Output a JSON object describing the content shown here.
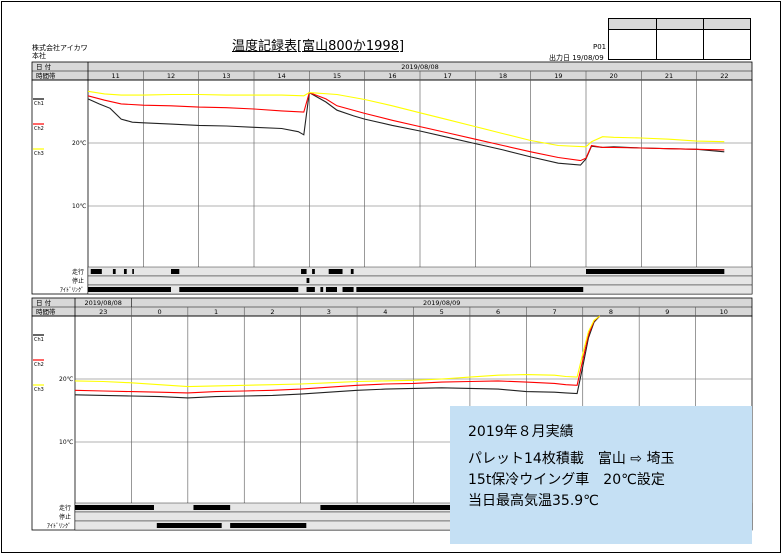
{
  "header": {
    "title": "温度記録表[富山800か1998]",
    "company": "株式会社アイカワ",
    "office": "本社",
    "page_no": "P01",
    "output_date": "出力日 19/08/09"
  },
  "labels": {
    "date_row": "日 付",
    "time_row": "時間帯",
    "drive": "走行",
    "stop": "停止",
    "idling": "ｱｲﾄﾞﾘﾝｸﾞ"
  },
  "note": {
    "line1": "2019年８月実績",
    "line2": "パレット14枚積載　富山 ⇨ 埼玉",
    "line3": "15t保冷ウイング車　20℃設定",
    "line4": "当日最高気温35.9℃"
  },
  "chart_data": [
    {
      "type": "line",
      "panel": "top",
      "dates": [
        {
          "label": "2019/08/08",
          "hours": [
            "11",
            "12",
            "13",
            "14",
            "15",
            "16",
            "17",
            "18",
            "19",
            "20",
            "21",
            "22"
          ]
        }
      ],
      "y_ticks": [
        "20℃",
        "10℃"
      ],
      "channels": [
        "Ch1",
        "Ch2",
        "Ch3"
      ],
      "legend": {
        "Ch1": "#000000",
        "Ch2": "#ff0000",
        "Ch3": "#ffff00"
      },
      "series": [
        {
          "name": "Ch1",
          "color": "#222222",
          "x": [
            11.0,
            11.2,
            11.4,
            11.6,
            11.8,
            12.0,
            12.5,
            13.0,
            13.5,
            14.0,
            14.5,
            14.8,
            14.9,
            15.0,
            15.3,
            15.5,
            15.8,
            16.0,
            16.5,
            17.0,
            17.5,
            18.0,
            18.5,
            19.0,
            19.5,
            19.9,
            20.0,
            20.1,
            20.3,
            20.5,
            21.0,
            21.5,
            22.0,
            22.5
          ],
          "y": [
            27.0,
            26.2,
            25.5,
            23.8,
            23.3,
            23.2,
            23.0,
            22.8,
            22.7,
            22.5,
            22.3,
            21.8,
            21.3,
            28.0,
            26.5,
            25.2,
            24.3,
            23.8,
            22.8,
            21.9,
            20.9,
            19.9,
            18.9,
            17.8,
            16.8,
            16.5,
            17.5,
            19.5,
            19.3,
            19.4,
            19.2,
            19.1,
            19.0,
            18.6
          ]
        },
        {
          "name": "Ch2",
          "color": "#ff0000",
          "x": [
            11.0,
            11.3,
            11.6,
            12.0,
            12.5,
            13.0,
            13.5,
            14.0,
            14.5,
            14.9,
            15.0,
            15.3,
            15.5,
            16.0,
            16.5,
            17.0,
            17.5,
            18.0,
            18.5,
            19.0,
            19.5,
            19.9,
            20.0,
            20.1,
            20.3,
            20.5,
            21.0,
            21.5,
            22.0,
            22.5
          ],
          "y": [
            27.5,
            26.8,
            26.2,
            26.0,
            25.9,
            25.7,
            25.6,
            25.4,
            25.1,
            24.9,
            28.0,
            27.0,
            25.9,
            24.7,
            23.6,
            22.6,
            21.6,
            20.6,
            19.6,
            18.6,
            17.7,
            17.2,
            17.6,
            19.6,
            19.3,
            19.3,
            19.2,
            19.1,
            19.0,
            18.9
          ]
        },
        {
          "name": "Ch3",
          "color": "#ffff00",
          "x": [
            11.0,
            11.3,
            11.6,
            12.0,
            12.5,
            13.0,
            13.5,
            14.0,
            14.5,
            14.9,
            15.0,
            15.5,
            16.0,
            16.5,
            17.0,
            17.5,
            18.0,
            18.5,
            19.0,
            19.5,
            20.0,
            20.1,
            20.3,
            20.5,
            21.0,
            21.5,
            22.0,
            22.5
          ],
          "y": [
            28.2,
            27.8,
            27.6,
            27.6,
            27.7,
            27.7,
            27.6,
            27.6,
            27.6,
            27.5,
            28.0,
            27.7,
            26.9,
            25.9,
            24.8,
            23.7,
            22.6,
            21.5,
            20.4,
            19.6,
            19.4,
            20.2,
            21.0,
            20.9,
            20.8,
            20.6,
            20.3,
            20.2
          ]
        }
      ],
      "drive_segments": [
        [
          11.05,
          11.25
        ],
        [
          11.45,
          11.5
        ],
        [
          11.65,
          11.7
        ],
        [
          11.8,
          11.83
        ],
        [
          12.5,
          12.65
        ],
        [
          14.85,
          14.95
        ],
        [
          15.05,
          15.1
        ],
        [
          15.35,
          15.6
        ],
        [
          15.75,
          15.8
        ],
        [
          20.0,
          22.5
        ]
      ],
      "stop_segments": [
        [
          14.95,
          15.0
        ]
      ],
      "idling_segments": [
        [
          11.0,
          12.5
        ],
        [
          12.65,
          14.8
        ],
        [
          14.95,
          15.1
        ],
        [
          15.2,
          15.25
        ],
        [
          15.3,
          15.5
        ],
        [
          15.6,
          15.8
        ],
        [
          15.85,
          19.95
        ]
      ]
    },
    {
      "type": "line",
      "panel": "bottom",
      "dates": [
        {
          "label": "2019/08/08",
          "hours": [
            "23"
          ]
        },
        {
          "label": "2019/08/09",
          "hours": [
            "0",
            "1",
            "2",
            "3",
            "4",
            "5",
            "6",
            "7",
            "8",
            "9",
            "10"
          ]
        }
      ],
      "y_ticks": [
        "20℃",
        "10℃"
      ],
      "channels": [
        "Ch1",
        "Ch2",
        "Ch3"
      ],
      "legend": {
        "Ch1": "#000000",
        "Ch2": "#ff0000",
        "Ch3": "#ffff00"
      },
      "series": [
        {
          "name": "Ch1",
          "color": "#222222",
          "x": [
            23.0,
            23.5,
            24.0,
            24.5,
            25.0,
            25.5,
            26.0,
            26.5,
            27.0,
            27.5,
            28.0,
            28.5,
            29.0,
            29.5,
            30.0,
            30.5,
            31.0,
            31.5,
            31.7,
            31.9,
            32.0,
            32.1,
            32.2,
            32.3
          ],
          "y": [
            17.5,
            17.4,
            17.3,
            17.2,
            17.0,
            17.2,
            17.3,
            17.4,
            17.6,
            17.9,
            18.2,
            18.4,
            18.5,
            18.6,
            18.5,
            18.4,
            18.0,
            17.9,
            17.8,
            17.7,
            22.0,
            26.5,
            29.0,
            30.0
          ]
        },
        {
          "name": "Ch2",
          "color": "#ff0000",
          "x": [
            23.0,
            23.5,
            24.0,
            24.5,
            25.0,
            25.5,
            26.0,
            26.5,
            27.0,
            27.5,
            28.0,
            28.5,
            29.0,
            29.5,
            30.0,
            30.5,
            31.0,
            31.5,
            31.7,
            31.9,
            32.0,
            32.1,
            32.2,
            32.3
          ],
          "y": [
            18.2,
            18.1,
            18.0,
            17.9,
            17.8,
            18.0,
            18.1,
            18.2,
            18.4,
            18.7,
            19.0,
            19.2,
            19.3,
            19.5,
            19.6,
            19.7,
            19.5,
            19.3,
            19.1,
            19.0,
            23.0,
            27.0,
            29.2,
            30.0
          ]
        },
        {
          "name": "Ch3",
          "color": "#ffff00",
          "x": [
            23.0,
            23.5,
            24.0,
            24.5,
            25.0,
            25.5,
            26.0,
            26.5,
            27.0,
            27.5,
            28.0,
            28.5,
            29.0,
            29.5,
            30.0,
            30.5,
            31.0,
            31.5,
            31.7,
            31.9,
            32.0,
            32.1,
            32.2,
            32.3
          ],
          "y": [
            19.7,
            19.6,
            19.4,
            19.1,
            18.8,
            18.9,
            19.0,
            19.1,
            19.2,
            19.4,
            19.6,
            19.7,
            19.8,
            20.0,
            20.3,
            20.6,
            20.7,
            20.6,
            20.4,
            20.3,
            24.0,
            27.5,
            29.3,
            30.0
          ]
        }
      ],
      "drive_segments": [
        [
          23.0,
          24.4
        ],
        [
          25.1,
          25.75
        ],
        [
          27.35,
          30.8
        ]
      ],
      "stop_segments": [],
      "idling_segments": [
        [
          24.45,
          25.6
        ],
        [
          25.75,
          27.1
        ]
      ]
    }
  ]
}
